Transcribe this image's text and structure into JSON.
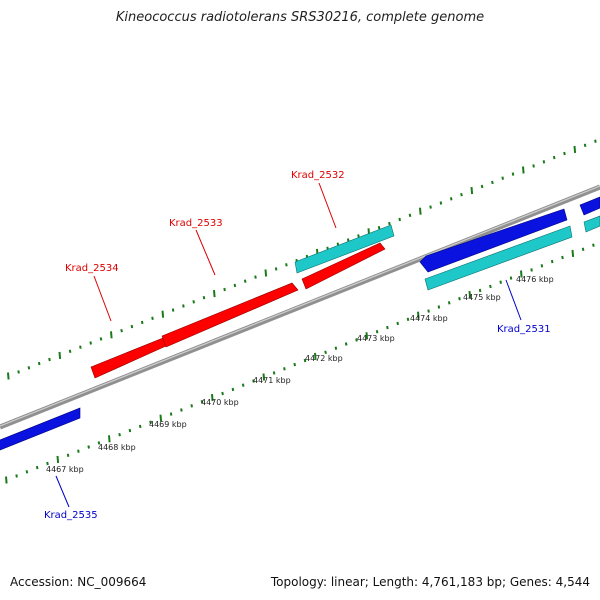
{
  "title": "Kineococcus radiotolerans SRS30216, complete genome",
  "footer": {
    "accession": "Accession: NC_009664",
    "summary": "Topology: linear; Length: 4,761,183 bp; Genes: 4,544"
  },
  "colors": {
    "backbone": "#808080",
    "tick": "#1a7a1a",
    "label_red": "#dd0000",
    "label_blue": "#0000cc",
    "feature_red": "#ff0000",
    "feature_cyan": "#1ec8c8",
    "feature_blue": "#0a12e0"
  },
  "axis_ticks": [
    {
      "label": "4467 kbp",
      "kbp": 4467
    },
    {
      "label": "4468 kbp",
      "kbp": 4468
    },
    {
      "label": "4469 kbp",
      "kbp": 4469
    },
    {
      "label": "4470 kbp",
      "kbp": 4470
    },
    {
      "label": "4471 kbp",
      "kbp": 4471
    },
    {
      "label": "4472 kbp",
      "kbp": 4472
    },
    {
      "label": "4473 kbp",
      "kbp": 4473
    },
    {
      "label": "4474 kbp",
      "kbp": 4474
    },
    {
      "label": "4475 kbp",
      "kbp": 4475
    },
    {
      "label": "4476 kbp",
      "kbp": 4476
    }
  ],
  "genes": [
    {
      "name": "Krad_2535",
      "color": "blue"
    },
    {
      "name": "Krad_2534",
      "color": "red"
    },
    {
      "name": "Krad_2533",
      "color": "red"
    },
    {
      "name": "Krad_2532",
      "color": "red"
    },
    {
      "name": "Krad_2531",
      "color": "blue"
    }
  ]
}
